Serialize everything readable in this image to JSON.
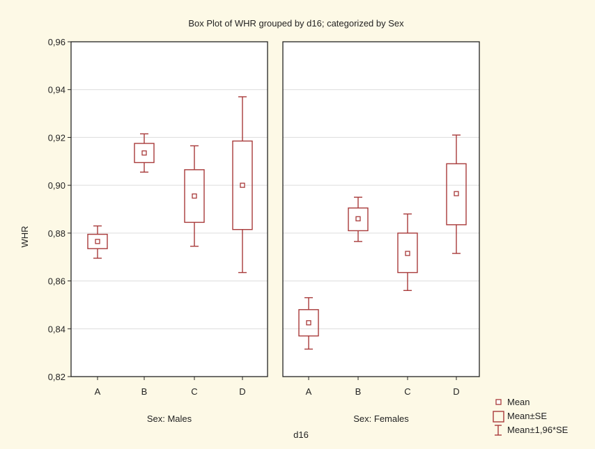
{
  "chart_data": {
    "type": "box",
    "title": "Box Plot of WHR grouped by  d16; categorized by Sex",
    "xlabel": "d16",
    "ylabel": "WHR",
    "ylim": [
      0.82,
      0.96
    ],
    "yticks": [
      0.82,
      0.84,
      0.86,
      0.88,
      0.9,
      0.92,
      0.94,
      0.96
    ],
    "ytick_labels": [
      "0,82",
      "0,84",
      "0,86",
      "0,88",
      "0,90",
      "0,92",
      "0,94",
      "0,96"
    ],
    "categories": [
      "A",
      "B",
      "C",
      "D"
    ],
    "grid": "horizontal",
    "legend_position": "bottom-right",
    "legend": [
      "Mean",
      "Mean±SE",
      "Mean±1,96*SE"
    ],
    "series_color": "#a83a3a",
    "panels": [
      {
        "label": "Sex: Males",
        "boxes": [
          {
            "category": "A",
            "mean": 0.8765,
            "se_low": 0.8735,
            "se_high": 0.8795,
            "ci_low": 0.8695,
            "ci_high": 0.883
          },
          {
            "category": "B",
            "mean": 0.9135,
            "se_low": 0.9095,
            "se_high": 0.9175,
            "ci_low": 0.9055,
            "ci_high": 0.9215
          },
          {
            "category": "C",
            "mean": 0.8955,
            "se_low": 0.8845,
            "se_high": 0.9065,
            "ci_low": 0.8745,
            "ci_high": 0.9165
          },
          {
            "category": "D",
            "mean": 0.9,
            "se_low": 0.8815,
            "se_high": 0.9185,
            "ci_low": 0.8635,
            "ci_high": 0.937
          }
        ]
      },
      {
        "label": "Sex: Females",
        "boxes": [
          {
            "category": "A",
            "mean": 0.8425,
            "se_low": 0.837,
            "se_high": 0.848,
            "ci_low": 0.8315,
            "ci_high": 0.853
          },
          {
            "category": "B",
            "mean": 0.886,
            "se_low": 0.881,
            "se_high": 0.8905,
            "ci_low": 0.8765,
            "ci_high": 0.895
          },
          {
            "category": "C",
            "mean": 0.8715,
            "se_low": 0.8635,
            "se_high": 0.88,
            "ci_low": 0.856,
            "ci_high": 0.888
          },
          {
            "category": "D",
            "mean": 0.8965,
            "se_low": 0.8835,
            "se_high": 0.909,
            "ci_low": 0.8715,
            "ci_high": 0.921
          }
        ]
      }
    ]
  }
}
